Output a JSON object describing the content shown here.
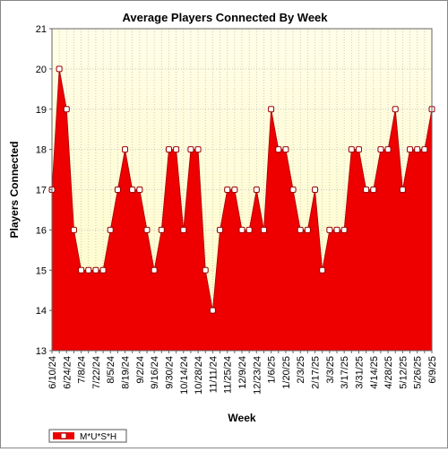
{
  "chart_data": {
    "type": "area",
    "title": "Average Players Connected By Week",
    "xlabel": "Week",
    "ylabel": "Players Connected",
    "ylim": [
      13,
      21
    ],
    "yticks": [
      13,
      14,
      15,
      16,
      17,
      18,
      19,
      20,
      21
    ],
    "grid": true,
    "legend_position": "bottom-left",
    "colors": {
      "fill": "#ee0000",
      "plot_bg_top": "#fffde6",
      "plot_bg_bottom": "#fffbc8",
      "grid": "#bbbbbb",
      "marker_fill": "#ffffff",
      "marker_stroke": "#990000"
    },
    "x": [
      "6/10/24",
      "6/17/24",
      "6/24/24",
      "7/1/24",
      "7/8/24",
      "7/15/24",
      "7/22/24",
      "7/29/24",
      "8/5/24",
      "8/12/24",
      "8/19/24",
      "8/26/24",
      "9/2/24",
      "9/9/24",
      "9/16/24",
      "9/23/24",
      "9/30/24",
      "10/7/24",
      "10/14/24",
      "10/21/24",
      "10/28/24",
      "11/4/24",
      "11/11/24",
      "11/18/24",
      "11/25/24",
      "12/2/24",
      "12/9/24",
      "12/16/24",
      "12/23/24",
      "12/30/24",
      "1/6/25",
      "1/13/25",
      "1/20/25",
      "1/27/25",
      "2/3/25",
      "2/10/25",
      "2/17/25",
      "2/24/25",
      "3/3/25",
      "3/10/25",
      "3/17/25",
      "3/24/25",
      "3/31/25",
      "4/7/25",
      "4/14/25",
      "4/21/25",
      "4/28/25",
      "5/5/25",
      "5/12/25",
      "5/19/25",
      "5/26/25",
      "6/2/25",
      "6/9/25"
    ],
    "xtick_labels": [
      "6/10/24",
      "6/24/24",
      "7/8/24",
      "7/22/24",
      "8/5/24",
      "8/19/24",
      "9/2/24",
      "9/16/24",
      "9/30/24",
      "10/14/24",
      "10/28/24",
      "11/11/24",
      "11/25/24",
      "12/9/24",
      "12/23/24",
      "1/6/25",
      "1/20/25",
      "2/3/25",
      "2/17/25",
      "3/3/25",
      "3/17/25",
      "3/31/25",
      "4/14/25",
      "4/28/25",
      "5/12/25",
      "5/26/25",
      "6/9/25"
    ],
    "series": [
      {
        "name": "M*U*S*H",
        "values": [
          17,
          20,
          19,
          16,
          15,
          15,
          15,
          15,
          16,
          17,
          18,
          17,
          17,
          16,
          15,
          16,
          18,
          18,
          16,
          18,
          18,
          15,
          14,
          16,
          17,
          17,
          16,
          16,
          17,
          16,
          19,
          18,
          18,
          17,
          16,
          16,
          17,
          15,
          16,
          16,
          16,
          18,
          18,
          17,
          17,
          18,
          18,
          19,
          17,
          18,
          18,
          18,
          19
        ]
      }
    ]
  }
}
